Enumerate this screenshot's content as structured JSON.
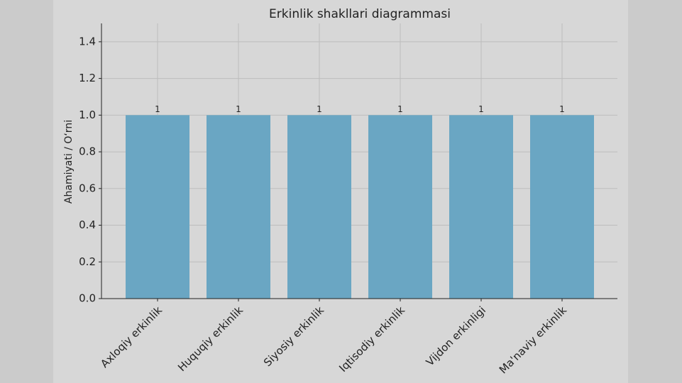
{
  "chart_data": {
    "type": "bar",
    "title": "Erkinlik shakllari diagrammasi",
    "y_label": "Ahamiyati / O‘rni",
    "categories": [
      "Axloqiy erkinlik",
      "Huquqiy erkinlik",
      "Siyosiy erkinlik",
      "Iqtisodiy erkinlik",
      "Vijdon erkinligi",
      "Ma'naviy erkinlik"
    ],
    "values": [
      1,
      1,
      1,
      1,
      1,
      1
    ],
    "color": "#6aa6c3",
    "ylim": [
      0,
      1.5
    ],
    "yticks": [
      {
        "value": 0,
        "label": "0.0"
      },
      {
        "value": 0.2,
        "label": "0.2"
      },
      {
        "value": 0.4,
        "label": "0.4"
      },
      {
        "value": 0.6,
        "label": "0.6"
      },
      {
        "value": 0.8,
        "label": "0.8"
      },
      {
        "value": 1,
        "label": "1.0"
      },
      {
        "value": 1.2,
        "label": "1.2"
      },
      {
        "value": 1.4,
        "label": "1.4"
      }
    ],
    "grid": true
  }
}
